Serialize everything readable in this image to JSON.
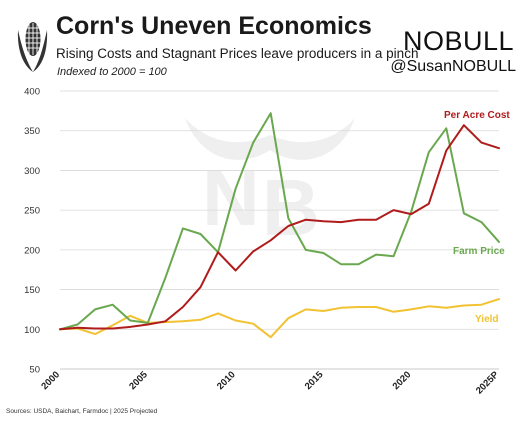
{
  "header": {
    "title": "Corn's Uneven Economics",
    "subtitle": "Rising Costs and Stagnant Prices leave producers in a pinch",
    "index_note": "Indexed to 2000 = 100",
    "brand": "NOBULL",
    "handle": "@SusanNOBULL"
  },
  "footer": {
    "source": "Sources: USDA, Baichart, Farmdoc | 2025 Projected"
  },
  "colors": {
    "per_acre_cost": "#b01c1c",
    "farm_price": "#6aa84f",
    "yield": "#f1c232",
    "grid": "#d9d9d9"
  },
  "chart_data": {
    "type": "line",
    "title": "Corn's Uneven Economics",
    "subtitle": "Rising Costs and Stagnant Prices leave producers in a pinch",
    "xlabel": "",
    "ylabel": "",
    "ylim": [
      50,
      400
    ],
    "yticks": [
      50,
      100,
      150,
      200,
      250,
      300,
      350,
      400
    ],
    "xticks": [
      "2000",
      "2005",
      "2010",
      "2015",
      "2020",
      "2025P"
    ],
    "grid": true,
    "x": [
      2000,
      2001,
      2002,
      2003,
      2004,
      2005,
      2006,
      2007,
      2008,
      2009,
      2010,
      2011,
      2012,
      2013,
      2014,
      2015,
      2016,
      2017,
      2018,
      2019,
      2020,
      2021,
      2022,
      2023,
      2024,
      2025
    ],
    "series": [
      {
        "name": "Per Acre Cost",
        "color": "#b01c1c",
        "values": [
          100,
          102,
          101,
          101,
          103,
          106,
          110,
          128,
          153,
          197,
          174,
          198,
          212,
          230,
          238,
          236,
          235,
          238,
          238,
          250,
          245,
          258,
          325,
          357,
          335,
          328
        ]
      },
      {
        "name": "Farm Price",
        "color": "#6aa84f",
        "values": [
          100,
          106,
          125,
          131,
          111,
          108,
          165,
          227,
          220,
          197,
          277,
          335,
          372,
          240,
          200,
          196,
          182,
          182,
          194,
          192,
          248,
          323,
          353,
          246,
          235,
          210
        ]
      },
      {
        "name": "Yield",
        "color": "#f1c232",
        "values": [
          100,
          101,
          94,
          105,
          117,
          108,
          109,
          110,
          112,
          120,
          111,
          107,
          90,
          114,
          125,
          123,
          127,
          128,
          128,
          122,
          125,
          129,
          127,
          130,
          131,
          138
        ]
      }
    ]
  }
}
